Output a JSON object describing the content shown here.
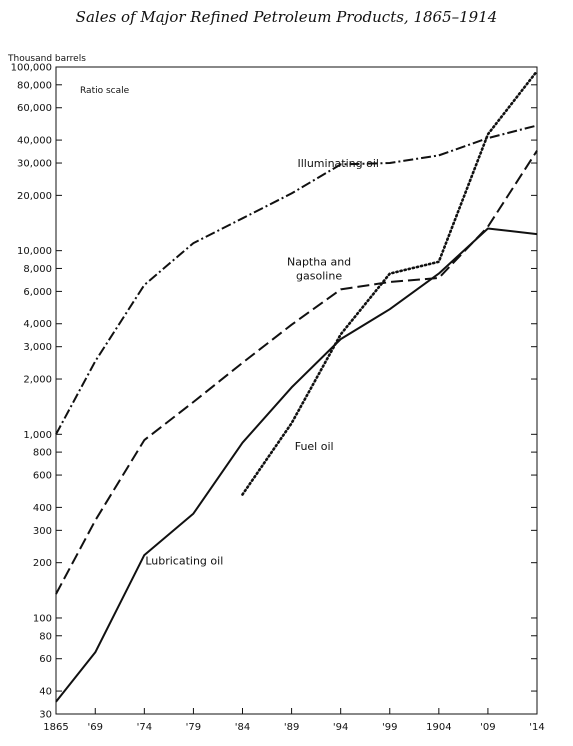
{
  "chart_data": {
    "type": "line",
    "title": "Sales of Major Refined Petroleum Products, 1865–1914",
    "ylabel": "Thousand barrels",
    "scale_note": "Ratio scale",
    "y_scale": "log",
    "ylim": [
      30,
      100000
    ],
    "x_ticks": [
      {
        "year": 1865,
        "label": "1865"
      },
      {
        "year": 1869,
        "label": "'69"
      },
      {
        "year": 1874,
        "label": "'74"
      },
      {
        "year": 1879,
        "label": "'79"
      },
      {
        "year": 1884,
        "label": "'84"
      },
      {
        "year": 1889,
        "label": "'89"
      },
      {
        "year": 1894,
        "label": "'94"
      },
      {
        "year": 1899,
        "label": "'99"
      },
      {
        "year": 1904,
        "label": "1904"
      },
      {
        "year": 1909,
        "label": "'09"
      },
      {
        "year": 1914,
        "label": "'14"
      }
    ],
    "y_ticks": [
      {
        "value": 30,
        "label": "30"
      },
      {
        "value": 40,
        "label": "40"
      },
      {
        "value": 60,
        "label": "60"
      },
      {
        "value": 80,
        "label": "80"
      },
      {
        "value": 100,
        "label": "100"
      },
      {
        "value": 200,
        "label": "200"
      },
      {
        "value": 300,
        "label": "300"
      },
      {
        "value": 400,
        "label": "400"
      },
      {
        "value": 600,
        "label": "600"
      },
      {
        "value": 800,
        "label": "800"
      },
      {
        "value": 1000,
        "label": "1,000"
      },
      {
        "value": 2000,
        "label": "2,000"
      },
      {
        "value": 3000,
        "label": "3,000"
      },
      {
        "value": 4000,
        "label": "4,000"
      },
      {
        "value": 6000,
        "label": "6,000"
      },
      {
        "value": 8000,
        "label": "8,000"
      },
      {
        "value": 10000,
        "label": "10,000"
      },
      {
        "value": 20000,
        "label": "20,000"
      },
      {
        "value": 30000,
        "label": "30,000"
      },
      {
        "value": 40000,
        "label": "40,000"
      },
      {
        "value": 60000,
        "label": "60,000"
      },
      {
        "value": 80000,
        "label": "80,000"
      },
      {
        "value": 100000,
        "label": "100,000"
      }
    ],
    "series": [
      {
        "name": "Illuminating oil",
        "label_lines": [
          "Illuminating oil"
        ],
        "style": "dashdot",
        "x": [
          1865,
          1869,
          1874,
          1879,
          1884,
          1889,
          1894,
          1899,
          1904,
          1909,
          1914
        ],
        "values": [
          1000,
          2500,
          6500,
          11000,
          15000,
          20500,
          29500,
          30000,
          33000,
          41000,
          48000
        ]
      },
      {
        "name": "Naptha and gasoline",
        "label_lines": [
          "Naptha and",
          "gasoline"
        ],
        "style": "longdash",
        "x": [
          1865,
          1869,
          1874,
          1879,
          1884,
          1889,
          1894,
          1899,
          1904,
          1909,
          1914
        ],
        "values": [
          135,
          340,
          930,
          1500,
          2450,
          3950,
          6150,
          6750,
          7100,
          13500,
          35000
        ]
      },
      {
        "name": "Lubricating oil",
        "label_lines": [
          "Lubricating oil"
        ],
        "style": "solid",
        "x": [
          1865,
          1869,
          1874,
          1879,
          1884,
          1889,
          1894,
          1899,
          1904,
          1909,
          1914
        ],
        "values": [
          35,
          65,
          220,
          370,
          900,
          1800,
          3300,
          4800,
          7500,
          13200,
          12300
        ]
      },
      {
        "name": "Fuel oil",
        "label_lines": [
          "Fuel oil"
        ],
        "style": "dotted",
        "x": [
          1884,
          1889,
          1894,
          1899,
          1904,
          1909,
          1914
        ],
        "values": [
          470,
          1150,
          3500,
          7500,
          8700,
          43000,
          95000
        ]
      }
    ]
  }
}
